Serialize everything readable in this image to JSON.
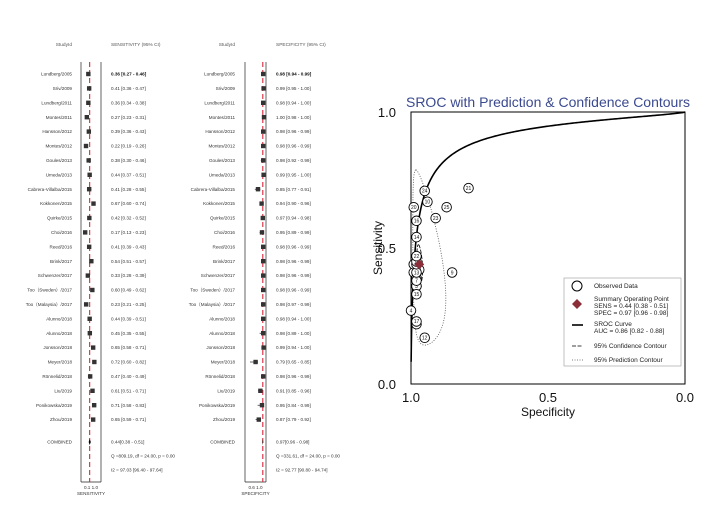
{
  "chart_data": [
    {
      "type": "forest",
      "header": {
        "study": "StudyId",
        "stat": "SENSITIVITY (95% CI)"
      },
      "axis_label": "SENSITIVITY",
      "axis_ticks": "0.1 1.0",
      "studies": [
        {
          "id": "Lundberg/2005",
          "est": 0.36,
          "lo": 0.27,
          "hi": 0.46,
          "text": "0.36 [0.27 - 0.46]"
        },
        {
          "id": "Sriv/2009",
          "est": 0.41,
          "lo": 0.36,
          "hi": 0.47,
          "text": "0.41 [0.36 - 0.47]"
        },
        {
          "id": "Lundberg/2011",
          "est": 0.36,
          "lo": 0.34,
          "hi": 0.38,
          "text": "0.36 [0.34 - 0.38]"
        },
        {
          "id": "Montes/2011",
          "est": 0.27,
          "lo": 0.23,
          "hi": 0.31,
          "text": "0.27 [0.23 - 0.31]"
        },
        {
          "id": "Hansson/2012",
          "est": 0.39,
          "lo": 0.36,
          "hi": 0.43,
          "text": "0.39 [0.36 - 0.43]"
        },
        {
          "id": "Montes/2012",
          "est": 0.22,
          "lo": 0.19,
          "hi": 0.26,
          "text": "0.22 [0.19 - 0.26]"
        },
        {
          "id": "Goules/2013",
          "est": 0.38,
          "lo": 0.3,
          "hi": 0.46,
          "text": "0.38 [0.30 - 0.46]"
        },
        {
          "id": "Umeda/2013",
          "est": 0.44,
          "lo": 0.37,
          "hi": 0.51,
          "text": "0.44 [0.37 - 0.51]"
        },
        {
          "id": "Cabrera-Villalba/2015",
          "est": 0.41,
          "lo": 0.28,
          "hi": 0.55,
          "text": "0.41 [0.28 - 0.55]"
        },
        {
          "id": "Kokkonen/2015",
          "est": 0.67,
          "lo": 0.6,
          "hi": 0.74,
          "text": "0.67 [0.60 - 0.74]"
        },
        {
          "id": "Quirke/2015",
          "est": 0.42,
          "lo": 0.32,
          "hi": 0.52,
          "text": "0.42 [0.32 - 0.52]"
        },
        {
          "id": "Choi/2016",
          "est": 0.17,
          "lo": 0.13,
          "hi": 0.23,
          "text": "0.17 [0.13 - 0.23]"
        },
        {
          "id": "Reed/2016",
          "est": 0.41,
          "lo": 0.39,
          "hi": 0.43,
          "text": "0.41 [0.39 - 0.43]"
        },
        {
          "id": "Brink/2017",
          "est": 0.54,
          "lo": 0.51,
          "hi": 0.57,
          "text": "0.54 [0.51 - 0.57]"
        },
        {
          "id": "Schwenzer/2017",
          "est": 0.33,
          "lo": 0.28,
          "hi": 0.39,
          "text": "0.33 [0.28 - 0.39]"
        },
        {
          "id": "Too（Sweden）/2017",
          "est": 0.6,
          "lo": 0.49,
          "hi": 0.62,
          "text": "0.60 [0.49 - 0.62]"
        },
        {
          "id": "Too（Malaysia）/2017",
          "est": 0.23,
          "lo": 0.21,
          "hi": 0.25,
          "text": "0.23 [0.21 - 0.25]"
        },
        {
          "id": "Alunno/2018",
          "est": 0.44,
          "lo": 0.39,
          "hi": 0.51,
          "text": "0.44 [0.39 - 0.51]"
        },
        {
          "id": "Alunno/2018",
          "est": 0.45,
          "lo": 0.35,
          "hi": 0.55,
          "text": "0.45 [0.35 - 0.55]"
        },
        {
          "id": "Jonsson/2018",
          "est": 0.65,
          "lo": 0.58,
          "hi": 0.71,
          "text": "0.65 [0.58 - 0.71]"
        },
        {
          "id": "Meyer/2018",
          "est": 0.72,
          "lo": 0.6,
          "hi": 0.82,
          "text": "0.72 [0.60 - 0.82]"
        },
        {
          "id": "Rönnelid/2018",
          "est": 0.47,
          "lo": 0.4,
          "hi": 0.49,
          "text": "0.47 [0.40 - 0.49]"
        },
        {
          "id": "Liu/2019",
          "est": 0.61,
          "lo": 0.51,
          "hi": 0.71,
          "text": "0.61 [0.51 - 0.71]"
        },
        {
          "id": "Ponikowska/2019",
          "est": 0.71,
          "lo": 0.58,
          "hi": 0.83,
          "text": "0.71 [0.58 - 0.83]"
        },
        {
          "id": "Zhou/2019",
          "est": 0.65,
          "lo": 0.59,
          "hi": 0.71,
          "text": "0.65 [0.59 - 0.71]"
        }
      ],
      "combined": {
        "id": "COMBINED",
        "est": 0.44,
        "lo": 0.38,
        "hi": 0.51,
        "text": "0.44[0.38 - 0.51]"
      },
      "q_text": "Q =809.19, df = 24.00, p = 0.00",
      "i2_text": "I2 = 97.03 [96.40 - 97.64]"
    },
    {
      "type": "forest",
      "header": {
        "study": "StudyId",
        "stat": "SPECIFICITY (95% CI)"
      },
      "axis_label": "SPECIFICITY",
      "axis_ticks": "0.6 1.0",
      "studies": [
        {
          "id": "Lundberg/2005",
          "est": 0.98,
          "lo": 0.94,
          "hi": 0.99,
          "text": "0.98 [0.94 - 0.99]"
        },
        {
          "id": "Sriv/2009",
          "est": 0.99,
          "lo": 0.95,
          "hi": 1.0,
          "text": "0.99 [0.95 - 1.00]"
        },
        {
          "id": "Lundberg/2011",
          "est": 0.98,
          "lo": 0.94,
          "hi": 1.0,
          "text": "0.98 [0.94 - 1.00]"
        },
        {
          "id": "Montes/2011",
          "est": 1.0,
          "lo": 0.98,
          "hi": 1.0,
          "text": "1.00 [0.98 - 1.00]"
        },
        {
          "id": "Hansson/2012",
          "est": 0.98,
          "lo": 0.96,
          "hi": 0.99,
          "text": "0.98 [0.96 - 0.99]"
        },
        {
          "id": "Montes/2012",
          "est": 0.98,
          "lo": 0.96,
          "hi": 0.99,
          "text": "0.98 [0.96 - 0.99]"
        },
        {
          "id": "Goules/2013",
          "est": 0.98,
          "lo": 0.92,
          "hi": 0.99,
          "text": "0.98 [0.92 - 0.99]"
        },
        {
          "id": "Umeda/2013",
          "est": 0.99,
          "lo": 0.95,
          "hi": 1.0,
          "text": "0.99 [0.95 - 1.00]"
        },
        {
          "id": "Cabrera-Villalba/2015",
          "est": 0.85,
          "lo": 0.77,
          "hi": 0.91,
          "text": "0.85 [0.77 - 0.91]"
        },
        {
          "id": "Kokkonen/2015",
          "est": 0.94,
          "lo": 0.9,
          "hi": 0.96,
          "text": "0.94 [0.90 - 0.96]"
        },
        {
          "id": "Quirke/2015",
          "est": 0.97,
          "lo": 0.94,
          "hi": 0.98,
          "text": "0.97 [0.94 - 0.98]"
        },
        {
          "id": "Choi/2016",
          "est": 0.95,
          "lo": 0.89,
          "hi": 0.99,
          "text": "0.95 [0.89 - 0.99]"
        },
        {
          "id": "Reed/2016",
          "est": 0.98,
          "lo": 0.96,
          "hi": 0.99,
          "text": "0.98 [0.96 - 0.99]"
        },
        {
          "id": "Brink/2017",
          "est": 0.98,
          "lo": 0.96,
          "hi": 0.99,
          "text": "0.98 [0.96 - 0.99]"
        },
        {
          "id": "Schwenzer/2017",
          "est": 0.98,
          "lo": 0.96,
          "hi": 0.99,
          "text": "0.98 [0.96 - 0.99]"
        },
        {
          "id": "Too（Sweden）/2017",
          "est": 0.98,
          "lo": 0.96,
          "hi": 0.99,
          "text": "0.98 [0.96 - 0.99]"
        },
        {
          "id": "Too（Malaysia）/2017",
          "est": 0.98,
          "lo": 0.97,
          "hi": 0.99,
          "text": "0.98 [0.97 - 0.99]"
        },
        {
          "id": "Alunno/2018",
          "est": 0.98,
          "lo": 0.94,
          "hi": 1.0,
          "text": "0.98 [0.94 - 1.00]"
        },
        {
          "id": "Alunno/2018",
          "est": 0.98,
          "lo": 0.89,
          "hi": 1.0,
          "text": "0.98 [0.89 - 1.00]"
        },
        {
          "id": "Jonsson/2018",
          "est": 0.99,
          "lo": 0.94,
          "hi": 1.0,
          "text": "0.99 [0.94 - 1.00]"
        },
        {
          "id": "Meyer/2018",
          "est": 0.79,
          "lo": 0.65,
          "hi": 0.85,
          "text": "0.79 [0.65 - 0.85]"
        },
        {
          "id": "Rönnelid/2018",
          "est": 0.98,
          "lo": 0.96,
          "hi": 0.99,
          "text": "0.98 [0.96 - 0.99]"
        },
        {
          "id": "Liu/2019",
          "est": 0.91,
          "lo": 0.85,
          "hi": 0.96,
          "text": "0.91 [0.85 - 0.96]"
        },
        {
          "id": "Ponikowska/2019",
          "est": 0.95,
          "lo": 0.84,
          "hi": 0.99,
          "text": "0.95 [0.84 - 0.99]"
        },
        {
          "id": "Zhou/2019",
          "est": 0.87,
          "lo": 0.79,
          "hi": 0.92,
          "text": "0.87 [0.79 - 0.92]"
        }
      ],
      "combined": {
        "id": "COMBINED",
        "est": 0.97,
        "lo": 0.96,
        "hi": 0.98,
        "text": "0.97[0.96 - 0.98]"
      },
      "q_text": "Q =331.61, df = 24.00, p = 0.00",
      "i2_text": "I2 = 92.77 [90.80 - 94.74]"
    },
    {
      "type": "scatter",
      "title": "SROC with Prediction & Confidence Contours",
      "xlabel": "Specificity",
      "ylabel": "Sensitivity",
      "x_reversed": true,
      "xlim": [
        1.0,
        0.0
      ],
      "ylim": [
        0.0,
        1.0
      ],
      "xticks": [
        "1.0",
        "0.5",
        "0.0"
      ],
      "yticks": [
        "0.0",
        "0.5",
        "1.0"
      ],
      "points": [
        {
          "label": "1",
          "x": 0.98,
          "y": 0.36
        },
        {
          "label": "2",
          "x": 0.99,
          "y": 0.41
        },
        {
          "label": "3",
          "x": 0.98,
          "y": 0.36
        },
        {
          "label": "4",
          "x": 1.0,
          "y": 0.27
        },
        {
          "label": "5",
          "x": 0.98,
          "y": 0.39
        },
        {
          "label": "6",
          "x": 0.98,
          "y": 0.22
        },
        {
          "label": "7",
          "x": 0.98,
          "y": 0.38
        },
        {
          "label": "8",
          "x": 0.99,
          "y": 0.44
        },
        {
          "label": "9",
          "x": 0.85,
          "y": 0.41
        },
        {
          "label": "10",
          "x": 0.94,
          "y": 0.67
        },
        {
          "label": "11",
          "x": 0.97,
          "y": 0.42
        },
        {
          "label": "12",
          "x": 0.95,
          "y": 0.17
        },
        {
          "label": "13",
          "x": 0.98,
          "y": 0.41
        },
        {
          "label": "14",
          "x": 0.98,
          "y": 0.54
        },
        {
          "label": "15",
          "x": 0.98,
          "y": 0.33
        },
        {
          "label": "16",
          "x": 0.98,
          "y": 0.6
        },
        {
          "label": "17",
          "x": 0.98,
          "y": 0.23
        },
        {
          "label": "18",
          "x": 0.98,
          "y": 0.44
        },
        {
          "label": "19",
          "x": 0.98,
          "y": 0.45
        },
        {
          "label": "20",
          "x": 0.99,
          "y": 0.65
        },
        {
          "label": "21",
          "x": 0.79,
          "y": 0.72
        },
        {
          "label": "22",
          "x": 0.98,
          "y": 0.47
        },
        {
          "label": "23",
          "x": 0.91,
          "y": 0.61
        },
        {
          "label": "24",
          "x": 0.95,
          "y": 0.71
        },
        {
          "label": "25",
          "x": 0.87,
          "y": 0.65
        }
      ],
      "summary_point": {
        "x": 0.97,
        "y": 0.44
      },
      "legend": {
        "placement": "bottom-right",
        "observed": "Observed Data",
        "summary_title": "Summary Operating Point",
        "summary_sens": "SENS = 0.44 [0.38 - 0.51]",
        "summary_spec": "SPEC = 0.97 [0.96 - 0.98]",
        "sroc_title": "SROC Curve",
        "sroc_auc": "AUC = 0.86 [0.82 - 0.88]",
        "conf": "95% Confidence Contour",
        "pred": "95% Prediction Contour"
      },
      "colors": {
        "summary": "#8b2e3a",
        "title": "#3b4a8f",
        "forest_line": "#d9263b"
      }
    }
  ]
}
